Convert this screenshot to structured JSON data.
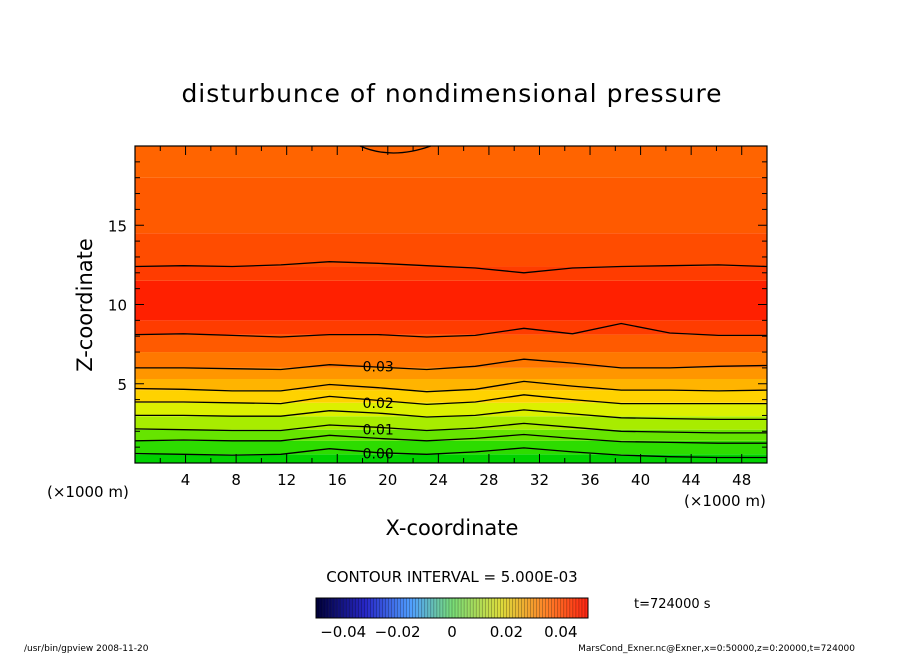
{
  "chart_data": {
    "type": "heatmap",
    "title": "disturbunce of nondimensional pressure",
    "xlabel": "X-coordinate",
    "ylabel": "Z-coordinate",
    "x_unit_left": "(×1000 m)",
    "x_unit_right": "(×1000 m)",
    "xlim": [
      0,
      50
    ],
    "ylim": [
      0,
      20
    ],
    "x_ticks": [
      4,
      8,
      12,
      16,
      20,
      24,
      28,
      32,
      36,
      40,
      44,
      48
    ],
    "y_ticks": [
      5,
      10,
      15
    ],
    "contour_interval_text": "CONTOUR INTERVAL = 5.000E-03",
    "contour_labels": [
      {
        "text": "0.03",
        "x": 17.5,
        "z": 6.1
      },
      {
        "text": "0.02",
        "x": 17.5,
        "z": 3.8
      },
      {
        "text": "0.01",
        "x": 17.5,
        "z": 2.1
      },
      {
        "text": "0.00",
        "x": 17.5,
        "z": 0.6
      }
    ],
    "colorbar": {
      "min": -0.05,
      "max": 0.05,
      "tick_labels": [
        "−0.04",
        "−0.02",
        "0",
        "0.02",
        "0.04"
      ],
      "tick_values": [
        -0.04,
        -0.02,
        0,
        0.02,
        0.04
      ]
    },
    "contours": [
      {
        "level": 0.0,
        "z": [
          0.6,
          0.55,
          0.5,
          0.55,
          0.9,
          0.65,
          0.55,
          0.7,
          0.95,
          0.7,
          0.5,
          0.4,
          0.35,
          0.35
        ]
      },
      {
        "level": 0.005,
        "z": [
          1.4,
          1.45,
          1.4,
          1.4,
          1.75,
          1.55,
          1.4,
          1.55,
          1.8,
          1.55,
          1.35,
          1.3,
          1.25,
          1.25
        ]
      },
      {
        "level": 0.01,
        "z": [
          2.15,
          2.1,
          2.05,
          2.05,
          2.4,
          2.25,
          2.05,
          2.2,
          2.5,
          2.25,
          2.0,
          1.95,
          1.9,
          1.9
        ]
      },
      {
        "level": 0.015,
        "z": [
          3.0,
          3.0,
          2.95,
          2.95,
          3.3,
          3.15,
          2.9,
          3.0,
          3.35,
          3.1,
          2.85,
          2.8,
          2.75,
          2.75
        ]
      },
      {
        "level": 0.02,
        "z": [
          3.85,
          3.85,
          3.8,
          3.75,
          4.2,
          3.95,
          3.7,
          3.85,
          4.3,
          4.0,
          3.75,
          3.75,
          3.75,
          3.75
        ]
      },
      {
        "level": 0.025,
        "z": [
          4.7,
          4.65,
          4.55,
          4.55,
          4.95,
          4.75,
          4.5,
          4.65,
          5.15,
          4.85,
          4.6,
          4.6,
          4.55,
          4.6
        ]
      },
      {
        "level": 0.03,
        "z": [
          6.0,
          6.0,
          5.95,
          5.9,
          6.2,
          6.05,
          5.9,
          6.1,
          6.55,
          6.3,
          6.0,
          6.0,
          6.1,
          6.15
        ]
      },
      {
        "level": 0.035,
        "z": [
          8.1,
          8.15,
          8.05,
          7.95,
          8.1,
          8.1,
          7.95,
          8.05,
          8.5,
          8.15,
          8.8,
          8.2,
          8.05,
          8.05
        ]
      },
      {
        "level": 0.035,
        "z": [
          12.4,
          12.45,
          12.4,
          12.5,
          12.7,
          12.6,
          12.45,
          12.3,
          12.0,
          12.3,
          12.4,
          12.45,
          12.5,
          12.4
        ]
      }
    ],
    "color_bands": [
      {
        "z0": 0.0,
        "z1": 0.55,
        "color": "#00d200"
      },
      {
        "z0": 0.55,
        "z1": 1.4,
        "color": "#2ddc00"
      },
      {
        "z0": 1.4,
        "z1": 2.1,
        "color": "#66e400"
      },
      {
        "z0": 2.1,
        "z1": 2.95,
        "color": "#a8ec00"
      },
      {
        "z0": 2.95,
        "z1": 3.8,
        "color": "#dcf000"
      },
      {
        "z0": 3.8,
        "z1": 4.6,
        "color": "#ffd200"
      },
      {
        "z0": 4.6,
        "z1": 5.3,
        "color": "#ffb400"
      },
      {
        "z0": 5.3,
        "z1": 6.0,
        "color": "#ff9600"
      },
      {
        "z0": 6.0,
        "z1": 7.0,
        "color": "#ff7800"
      },
      {
        "z0": 7.0,
        "z1": 8.1,
        "color": "#ff5a00"
      },
      {
        "z0": 8.1,
        "z1": 9.0,
        "color": "#ff3c00"
      },
      {
        "z0": 9.0,
        "z1": 11.5,
        "color": "#ff2000"
      },
      {
        "z0": 11.5,
        "z1": 12.4,
        "color": "#ff3c00"
      },
      {
        "z0": 12.4,
        "z1": 14.5,
        "color": "#ff4c00"
      },
      {
        "z0": 14.5,
        "z1": 18.0,
        "color": "#ff5a00"
      },
      {
        "z0": 18.0,
        "z1": 20.0,
        "color": "#ff6400"
      }
    ]
  },
  "time_label": "t=724000 s",
  "footer": {
    "left": "/usr/bin/gpview   2008-11-20",
    "right": "MarsCond_Exner.nc@Exner,x=0:50000,z=0:20000,t=724000"
  }
}
